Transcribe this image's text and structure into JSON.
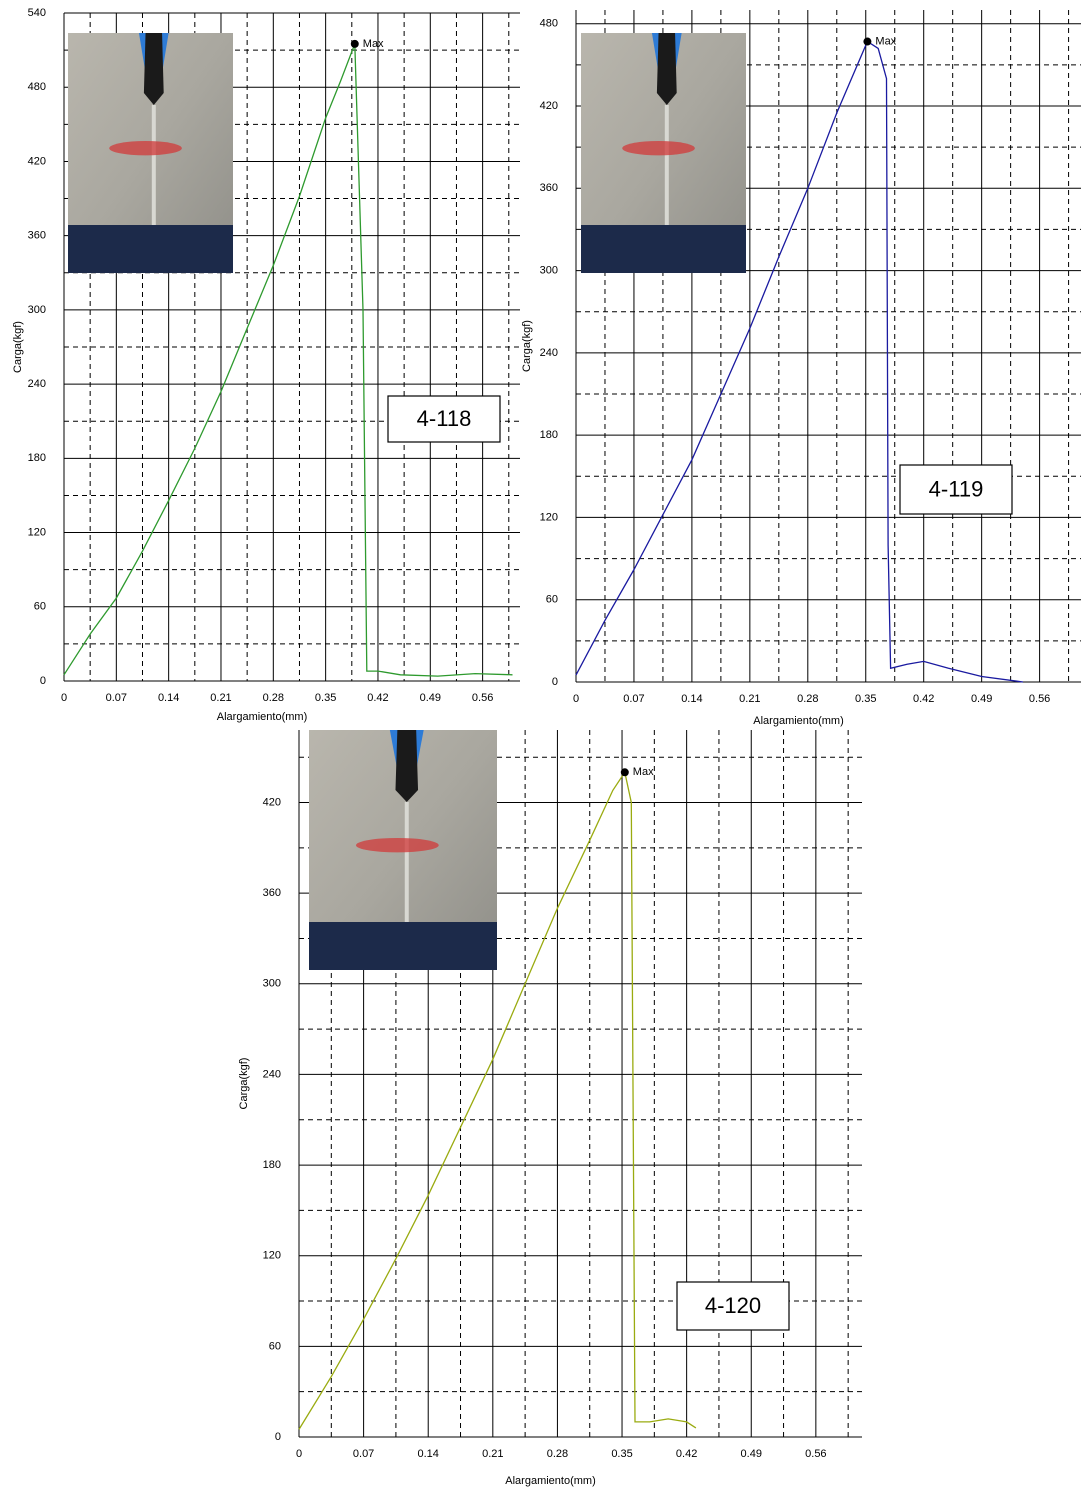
{
  "chart_data": [
    {
      "type": "line",
      "x_label": "Alargamiento(mm)",
      "y_label": "Carga(kgf)",
      "annotation": "Max",
      "label": "4-118",
      "color": "#2e9a2e",
      "grid": true,
      "x": [
        0,
        0.035,
        0.07,
        0.105,
        0.14,
        0.175,
        0.21,
        0.245,
        0.28,
        0.315,
        0.35,
        0.37,
        0.389,
        0.4,
        0.405,
        0.42,
        0.45,
        0.5,
        0.55,
        0.6
      ],
      "values": [
        5,
        38,
        67,
        105,
        146,
        188,
        234,
        285,
        336,
        392,
        455,
        485,
        515,
        300,
        8,
        8,
        5,
        4,
        6,
        5
      ],
      "xlim": [
        0,
        0.61
      ],
      "ylim": [
        0,
        540
      ],
      "xticks": [
        0,
        0.07,
        0.14,
        0.21,
        0.28,
        0.35,
        0.42,
        0.49,
        0.56
      ],
      "yticks": [
        0,
        60,
        120,
        180,
        240,
        300,
        360,
        420,
        480,
        540
      ],
      "xminor": [
        0.035,
        0.105,
        0.175,
        0.245,
        0.315,
        0.385,
        0.455,
        0.525,
        0.595
      ],
      "yminor": [
        30,
        90,
        150,
        210,
        270,
        330,
        390,
        450,
        510
      ]
    },
    {
      "type": "line",
      "x_label": "Alargamiento(mm)",
      "y_label": "Carga(kgf)",
      "annotation": "Max",
      "label": "4-119",
      "color": "#1a1aa0",
      "grid": true,
      "x": [
        0,
        0.035,
        0.07,
        0.105,
        0.14,
        0.175,
        0.21,
        0.245,
        0.28,
        0.315,
        0.352,
        0.365,
        0.375,
        0.377,
        0.38,
        0.4,
        0.42,
        0.45,
        0.49,
        0.54
      ],
      "values": [
        5,
        45,
        82,
        122,
        162,
        210,
        258,
        310,
        360,
        415,
        467,
        462,
        440,
        100,
        10,
        13,
        15,
        10,
        4,
        0
      ],
      "xlim": [
        0,
        0.61
      ],
      "ylim": [
        0,
        490
      ],
      "xticks": [
        0,
        0.07,
        0.14,
        0.21,
        0.28,
        0.35,
        0.42,
        0.49,
        0.56
      ],
      "yticks": [
        0,
        60,
        120,
        180,
        240,
        300,
        360,
        420,
        480
      ],
      "xminor": [
        0.035,
        0.105,
        0.175,
        0.245,
        0.315,
        0.385,
        0.455,
        0.525,
        0.595
      ],
      "yminor": [
        30,
        90,
        150,
        210,
        270,
        330,
        390,
        450
      ]
    },
    {
      "type": "line",
      "x_label": "Alargamiento(mm)",
      "y_label": "Carga(kgf)",
      "annotation": "Max",
      "label": "4-120",
      "color": "#9aab10",
      "grid": true,
      "x": [
        0,
        0.035,
        0.07,
        0.105,
        0.14,
        0.175,
        0.21,
        0.245,
        0.28,
        0.315,
        0.34,
        0.353,
        0.36,
        0.364,
        0.38,
        0.4,
        0.42,
        0.43
      ],
      "values": [
        5,
        40,
        78,
        118,
        160,
        205,
        250,
        300,
        350,
        395,
        428,
        440,
        420,
        10,
        10,
        12,
        10,
        6
      ],
      "xlim": [
        0,
        0.61
      ],
      "ylim": [
        0,
        468
      ],
      "xticks": [
        0,
        0.07,
        0.14,
        0.21,
        0.28,
        0.35,
        0.42,
        0.49,
        0.56
      ],
      "yticks": [
        0,
        60,
        120,
        180,
        240,
        300,
        360,
        420
      ],
      "xminor": [
        0.035,
        0.105,
        0.175,
        0.245,
        0.315,
        0.385,
        0.455,
        0.525,
        0.595
      ],
      "yminor": [
        30,
        90,
        150,
        210,
        270,
        330,
        390,
        450
      ]
    }
  ]
}
